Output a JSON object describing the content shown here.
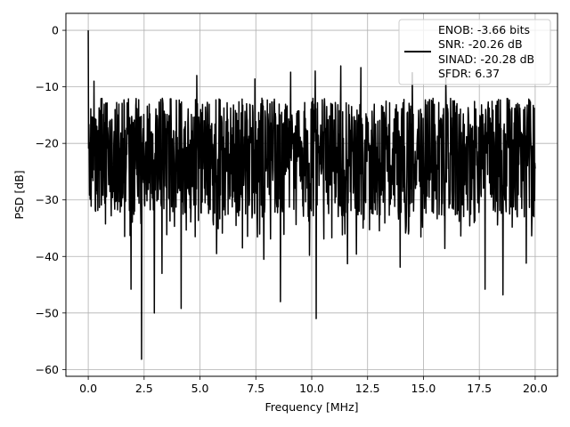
{
  "chart_data": {
    "type": "line",
    "title": "",
    "xlabel": "Frequency [MHz]",
    "ylabel": "PSD [dB]",
    "xlim": [
      -1.0,
      21.0
    ],
    "ylim": [
      -61.2,
      3.0
    ],
    "x_ticks": [
      0.0,
      2.5,
      5.0,
      7.5,
      10.0,
      12.5,
      15.0,
      17.5,
      20.0
    ],
    "x_tick_labels": [
      "0.0",
      "2.5",
      "5.0",
      "7.5",
      "10.0",
      "12.5",
      "15.0",
      "17.5",
      "20.0"
    ],
    "y_ticks": [
      0,
      -10,
      -20,
      -30,
      -40,
      -50,
      -60
    ],
    "y_tick_labels": [
      "0",
      "−10",
      "−20",
      "−30",
      "−40",
      "−50",
      "−60"
    ],
    "grid": true,
    "legend_position": "top-right",
    "legend_entries": [
      {
        "lines": [
          "ENOB: -3.66 bits",
          "SNR: -20.26 dB",
          "SINAD: -20.28 dB",
          "SFDR: 6.37"
        ]
      }
    ],
    "series": [
      {
        "color": "#000000",
        "x_range": [
          0.0,
          20.0
        ],
        "peak": {
          "x": 0.0,
          "y": 0.0
        },
        "noise_floor_mean": -20,
        "noise_upper": -10,
        "noise_lower": -33,
        "deep_notches": [
          {
            "x": 2.38,
            "y": -58.2
          },
          {
            "x": 10.2,
            "y": -51.0
          },
          {
            "x": 1.92,
            "y": -45.8
          },
          {
            "x": 2.95,
            "y": -50.0
          },
          {
            "x": 4.15,
            "y": -49.2
          },
          {
            "x": 8.6,
            "y": -48.0
          },
          {
            "x": 14.5,
            "y": -44.5
          },
          {
            "x": 17.75,
            "y": -45.8
          },
          {
            "x": 18.55,
            "y": -46.8
          },
          {
            "x": 7.85,
            "y": -40.5
          },
          {
            "x": 3.3,
            "y": -43.0
          },
          {
            "x": 5.75,
            "y": -39.5
          },
          {
            "x": 11.6,
            "y": -41.3
          },
          {
            "x": 13.95,
            "y": -41.9
          },
          {
            "x": 19.6,
            "y": -41.2
          },
          {
            "x": 12.0,
            "y": -39.6
          },
          {
            "x": 15.95,
            "y": -38.6
          },
          {
            "x": 6.9,
            "y": -38.5
          },
          {
            "x": 9.9,
            "y": -39.8
          }
        ],
        "high_spikes": [
          {
            "x": 0.25,
            "y": -9.0
          },
          {
            "x": 10.15,
            "y": -7.2
          },
          {
            "x": 11.3,
            "y": -6.3
          },
          {
            "x": 12.2,
            "y": -6.6
          },
          {
            "x": 9.05,
            "y": -7.4
          },
          {
            "x": 14.5,
            "y": -7.5
          },
          {
            "x": 4.85,
            "y": -8.0
          },
          {
            "x": 16.0,
            "y": -8.4
          },
          {
            "x": 7.45,
            "y": -8.6
          }
        ]
      }
    ]
  }
}
